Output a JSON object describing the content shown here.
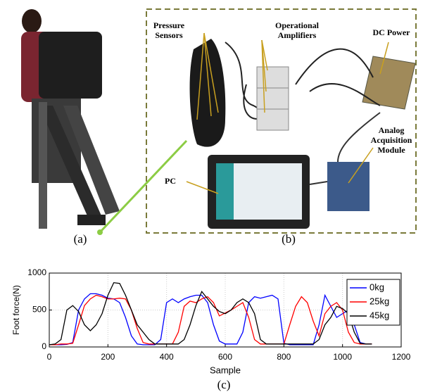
{
  "figure": {
    "panel_labels": [
      "(a)",
      "(b)",
      "(c)"
    ],
    "callouts": [
      {
        "lines": [
          "Pressure",
          "Sensors"
        ]
      },
      {
        "lines": [
          "Operational",
          "Amplifiers"
        ]
      },
      {
        "lines": [
          "DC Power"
        ]
      },
      {
        "lines": [
          "Analog",
          "Acquisition",
          "Module"
        ]
      },
      {
        "lines": [
          "PC"
        ]
      }
    ]
  },
  "chart_data": {
    "type": "line",
    "x_label": "Sample",
    "y_label": "Foot force(N)",
    "xlim": [
      0,
      1200
    ],
    "ylim": [
      0,
      1000
    ],
    "xticks": [
      0,
      200,
      400,
      600,
      800,
      1000,
      1200
    ],
    "yticks": [
      0,
      500,
      1000
    ],
    "grid": true,
    "legend": "upper right",
    "x": [
      0,
      20,
      40,
      60,
      80,
      100,
      120,
      140,
      160,
      180,
      200,
      220,
      240,
      260,
      280,
      300,
      320,
      340,
      360,
      380,
      400,
      420,
      440,
      460,
      480,
      500,
      520,
      540,
      560,
      580,
      600,
      620,
      640,
      660,
      680,
      700,
      720,
      740,
      760,
      780,
      800,
      820,
      840,
      860,
      880,
      900,
      920,
      940,
      960,
      980,
      1000,
      1020,
      1040,
      1060,
      1080,
      1100
    ],
    "series": [
      {
        "name": "0kg",
        "color": "#0000ff",
        "values": [
          30,
          30,
          30,
          35,
          60,
          500,
          650,
          720,
          720,
          700,
          660,
          650,
          600,
          400,
          150,
          40,
          30,
          30,
          30,
          100,
          600,
          650,
          600,
          650,
          680,
          700,
          700,
          600,
          300,
          80,
          40,
          40,
          40,
          200,
          600,
          680,
          660,
          680,
          700,
          650,
          50,
          30,
          30,
          30,
          30,
          30,
          300,
          700,
          550,
          400,
          450,
          500,
          300,
          60,
          40,
          40
        ]
      },
      {
        "name": "25kg",
        "color": "#ff0000",
        "values": [
          30,
          30,
          40,
          40,
          50,
          300,
          560,
          650,
          700,
          680,
          650,
          650,
          660,
          650,
          500,
          250,
          60,
          40,
          40,
          40,
          40,
          40,
          200,
          550,
          620,
          600,
          650,
          680,
          600,
          420,
          460,
          500,
          550,
          600,
          400,
          100,
          40,
          40,
          40,
          40,
          40,
          300,
          550,
          680,
          600,
          350,
          150,
          450,
          550,
          600,
          500,
          200,
          60,
          40,
          40,
          40
        ]
      },
      {
        "name": "45kg",
        "color": "#000000",
        "values": [
          30,
          40,
          100,
          500,
          560,
          480,
          300,
          220,
          300,
          450,
          700,
          870,
          860,
          700,
          500,
          300,
          200,
          100,
          40,
          40,
          40,
          40,
          40,
          100,
          300,
          560,
          750,
          650,
          550,
          480,
          450,
          500,
          600,
          650,
          600,
          450,
          100,
          40,
          40,
          40,
          40,
          40,
          40,
          40,
          40,
          40,
          100,
          300,
          400,
          550,
          520,
          450,
          200,
          50,
          40,
          40
        ]
      }
    ]
  }
}
